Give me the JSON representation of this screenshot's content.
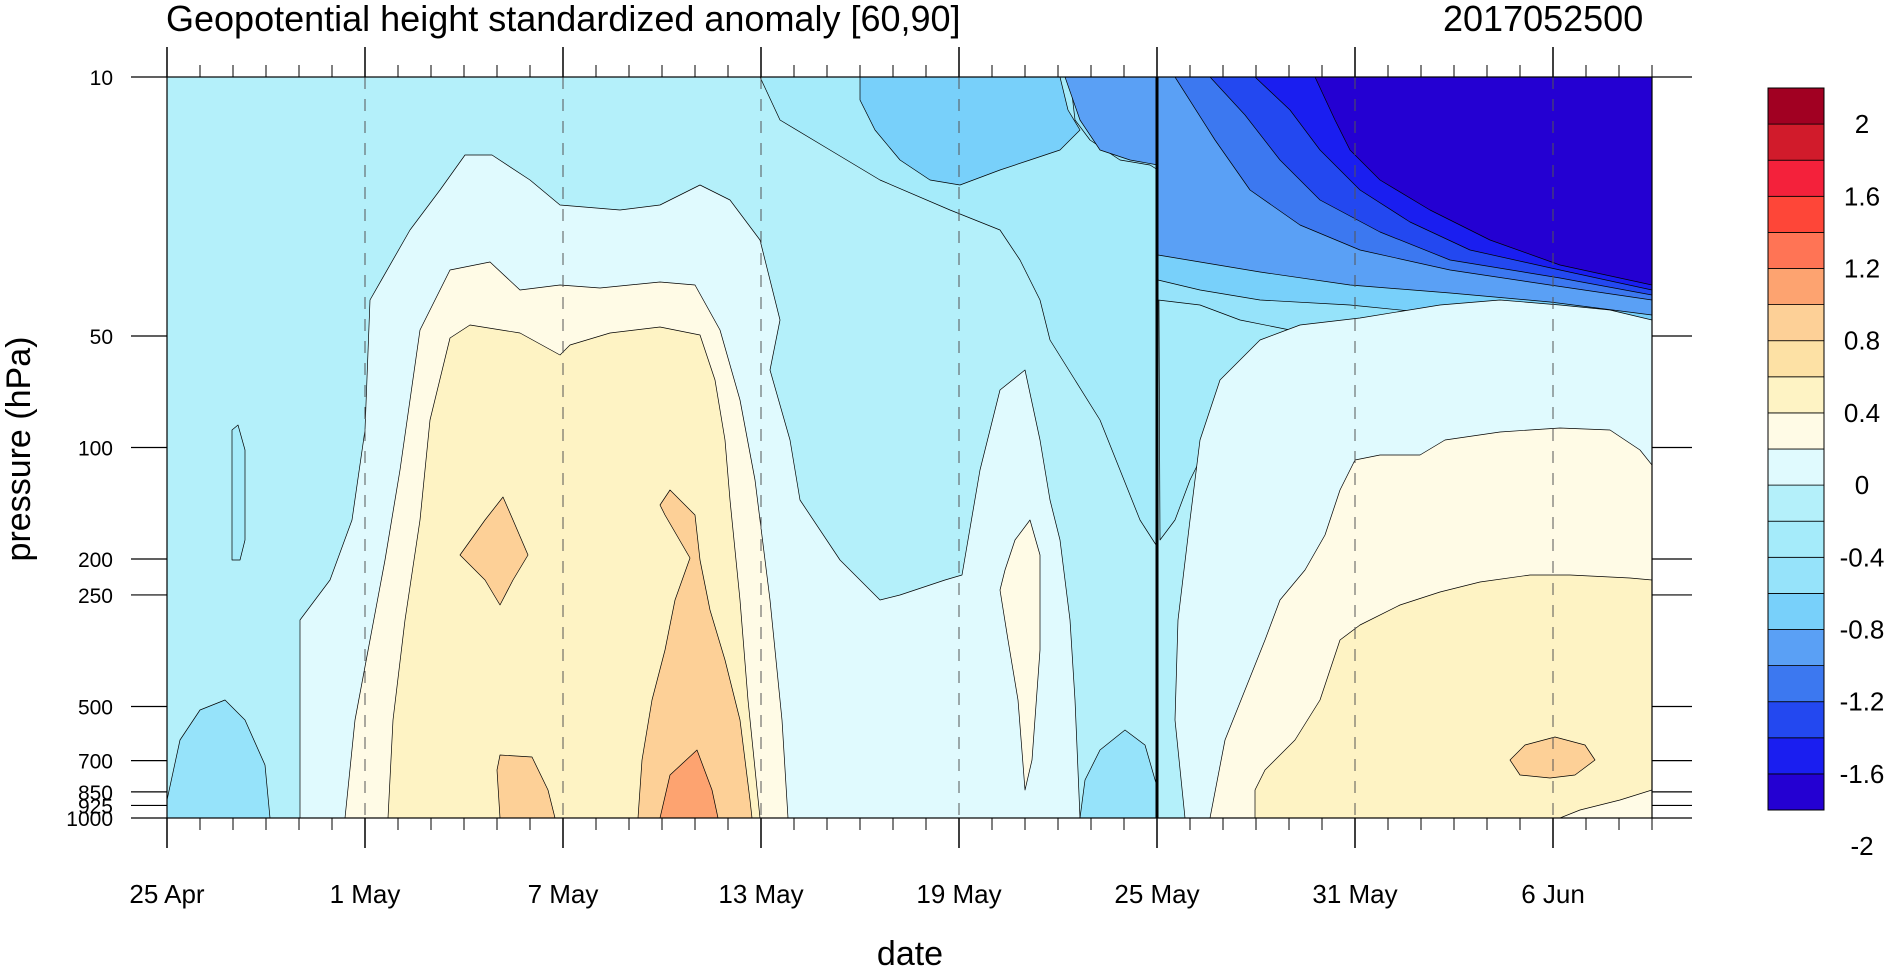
{
  "title_left": "Geopotential height standardized anomaly [60,90]",
  "title_right": "2017052500",
  "chart_data": {
    "type": "heatmap",
    "subtype": "filled-contour",
    "title": "Geopotential height standardized anomaly [60,90]",
    "date_stamp": "2017052500",
    "xlabel": "date",
    "ylabel": "pressure (hPa)",
    "x_axis": {
      "start": "25 Apr",
      "end": "9 Jun",
      "length_days": 45,
      "tick_labels": [
        "25 Apr",
        "1 May",
        "7 May",
        "13 May",
        "19 May",
        "25 May",
        "31 May",
        "6 Jun"
      ],
      "tick_days": [
        0,
        6,
        12,
        18,
        24,
        30,
        36,
        42
      ],
      "dashed_gridlines_at_labeled_ticks": true,
      "current_date_marker": "25 May"
    },
    "y_axis": {
      "scale": "log",
      "inverted": true,
      "range": [
        1000,
        10
      ],
      "tick_values": [
        10,
        50,
        100,
        200,
        250,
        500,
        700,
        850,
        925,
        1000
      ]
    },
    "colorbar": {
      "levels": [
        -2.2,
        -2.0,
        -1.8,
        -1.6,
        -1.4,
        -1.2,
        -1.0,
        -0.8,
        -0.6,
        -0.4,
        -0.2,
        0,
        0.2,
        0.4,
        0.6,
        0.8,
        1.0,
        1.2,
        1.4,
        1.6,
        1.8,
        2.0,
        2.2
      ],
      "labels": [
        "2",
        "1.6",
        "1.2",
        "0.8",
        "0.4",
        "0",
        "-0.4",
        "-0.8",
        "-1.2",
        "-1.6",
        "-2"
      ],
      "colors": [
        "#2400d2",
        "#1a1ef0",
        "#2348f0",
        "#3c78f0",
        "#5aa0f5",
        "#78d0fa",
        "#96e3fa",
        "#a5ebfa",
        "#b4f0fa",
        "#e0fafe",
        "#fffbe6",
        "#fef3c4",
        "#fde1a5",
        "#fdd097",
        "#fda370",
        "#ff7455",
        "#fe4638",
        "#f4213b",
        "#d11b2b",
        "#a10022"
      ]
    },
    "fields": [
      {
        "region": "background",
        "value": -0.3
      },
      {
        "region": "late-May to June stratosphere",
        "value_range": [
          -2.2,
          -0.4
        ],
        "min_region": "top-right, 29 May–9 Jun, 10–35 hPa"
      },
      {
        "region": "early-to-mid May troposphere",
        "value_range": [
          0,
          0.6
        ],
        "max": 0.6
      },
      {
        "region": "late-May to June troposphere",
        "value_range": [
          0,
          0.6
        ],
        "max": 0.6
      }
    ]
  },
  "colors": {
    "background": "#ffffff",
    "axis": "#000000"
  }
}
